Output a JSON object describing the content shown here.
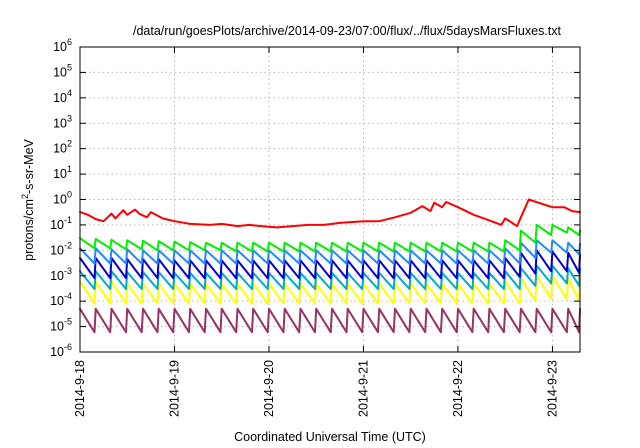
{
  "chart_data": {
    "type": "line",
    "title": "/data/run/goesPlots/archive/2014-09-23/07:00/flux/../flux/5daysMarsFluxes.txt",
    "xlabel": "Coordinated Universal Time (UTC)",
    "ylabel": "protons/cm²-s-sr-MeV",
    "y_scale": "log",
    "ylim": [
      1e-06,
      1000000.0
    ],
    "xlim": [
      "2014-09-18T00:00",
      "2014-09-23T07:00"
    ],
    "y_tick_labels": [
      {
        "value": 1e-06,
        "base": "10",
        "exp": "-6"
      },
      {
        "value": 1e-05,
        "base": "10",
        "exp": "-5"
      },
      {
        "value": 0.0001,
        "base": "10",
        "exp": "-4"
      },
      {
        "value": 0.001,
        "base": "10",
        "exp": "-3"
      },
      {
        "value": 0.01,
        "base": "10",
        "exp": "-2"
      },
      {
        "value": 0.1,
        "base": "10",
        "exp": "-1"
      },
      {
        "value": 1,
        "base": "10",
        "exp": "0"
      },
      {
        "value": 10,
        "base": "10",
        "exp": "1"
      },
      {
        "value": 100,
        "base": "10",
        "exp": "2"
      },
      {
        "value": 1000,
        "base": "10",
        "exp": "3"
      },
      {
        "value": 10000,
        "base": "10",
        "exp": "4"
      },
      {
        "value": 100000,
        "base": "10",
        "exp": "5"
      },
      {
        "value": 1000000,
        "base": "10",
        "exp": "6"
      }
    ],
    "x_tick_labels": [
      {
        "value": "2014-09-18T00:00",
        "label": "2014-9-18"
      },
      {
        "value": "2014-09-19T00:00",
        "label": "2014-9-19"
      },
      {
        "value": "2014-09-20T00:00",
        "label": "2014-9-20"
      },
      {
        "value": "2014-09-21T00:00",
        "label": "2014-9-21"
      },
      {
        "value": "2014-09-22T00:00",
        "label": "2014-9-22"
      },
      {
        "value": "2014-09-23T00:00",
        "label": "2014-9-23"
      }
    ],
    "grid": true,
    "legend": "none",
    "series": [
      {
        "color": "#ff0000",
        "sawtooth": false,
        "x": [
          "2014-09-18T00:00",
          "2014-09-18T02:00",
          "2014-09-18T04:00",
          "2014-09-18T06:00",
          "2014-09-18T08:00",
          "2014-09-18T09:00",
          "2014-09-18T11:00",
          "2014-09-18T12:00",
          "2014-09-18T14:00",
          "2014-09-18T15:00",
          "2014-09-18T17:00",
          "2014-09-18T18:00",
          "2014-09-18T20:00",
          "2014-09-18T21:00",
          "2014-09-19T00:00",
          "2014-09-19T04:00",
          "2014-09-19T09:00",
          "2014-09-19T12:00",
          "2014-09-19T16:00",
          "2014-09-19T19:00",
          "2014-09-19T22:00",
          "2014-09-20T02:00",
          "2014-09-20T06:00",
          "2014-09-20T10:00",
          "2014-09-20T14:00",
          "2014-09-20T18:00",
          "2014-09-21T00:00",
          "2014-09-21T04:00",
          "2014-09-21T08:00",
          "2014-09-21T12:00",
          "2014-09-21T15:00",
          "2014-09-21T17:00",
          "2014-09-21T18:00",
          "2014-09-21T20:00",
          "2014-09-21T21:00",
          "2014-09-22T00:00",
          "2014-09-22T04:00",
          "2014-09-22T08:00",
          "2014-09-22T11:00",
          "2014-09-22T12:00",
          "2014-09-22T15:00",
          "2014-09-22T16:00",
          "2014-09-22T18:00",
          "2014-09-22T21:00",
          "2014-09-23T00:00",
          "2014-09-23T03:00",
          "2014-09-23T05:00",
          "2014-09-23T07:00"
        ],
        "y": [
          0.32,
          0.25,
          0.17,
          0.14,
          0.28,
          0.18,
          0.38,
          0.25,
          0.4,
          0.28,
          0.2,
          0.32,
          0.22,
          0.18,
          0.14,
          0.11,
          0.1,
          0.11,
          0.09,
          0.1,
          0.09,
          0.08,
          0.09,
          0.1,
          0.1,
          0.12,
          0.14,
          0.14,
          0.2,
          0.3,
          0.55,
          0.35,
          0.75,
          0.5,
          0.8,
          0.5,
          0.25,
          0.15,
          0.1,
          0.18,
          0.09,
          0.2,
          1.0,
          0.7,
          0.5,
          0.5,
          0.35,
          0.32
        ]
      },
      {
        "color": "#00ee00",
        "sawtooth": true,
        "x": [
          "2014-09-18T00:00",
          "2014-09-18T04:00",
          "2014-09-18T08:00",
          "2014-09-18T12:00",
          "2014-09-18T16:00",
          "2014-09-18T20:00",
          "2014-09-19T00:00",
          "2014-09-19T04:00",
          "2014-09-19T08:00",
          "2014-09-19T12:00",
          "2014-09-19T16:00",
          "2014-09-19T20:00",
          "2014-09-20T00:00",
          "2014-09-20T04:00",
          "2014-09-20T08:00",
          "2014-09-20T12:00",
          "2014-09-20T16:00",
          "2014-09-20T20:00",
          "2014-09-21T00:00",
          "2014-09-21T04:00",
          "2014-09-21T08:00",
          "2014-09-21T12:00",
          "2014-09-21T16:00",
          "2014-09-21T20:00",
          "2014-09-22T00:00",
          "2014-09-22T04:00",
          "2014-09-22T08:00",
          "2014-09-22T12:00",
          "2014-09-22T16:00",
          "2014-09-22T20:00",
          "2014-09-23T00:00",
          "2014-09-23T04:00",
          "2014-09-23T07:00"
        ],
        "y_low": [
          0.012,
          0.012,
          0.011,
          0.011,
          0.01,
          0.01,
          0.01,
          0.01,
          0.01,
          0.009,
          0.009,
          0.009,
          0.009,
          0.009,
          0.009,
          0.009,
          0.009,
          0.009,
          0.009,
          0.009,
          0.009,
          0.009,
          0.009,
          0.009,
          0.009,
          0.009,
          0.009,
          0.01,
          0.02,
          0.04,
          0.05,
          0.04,
          0.03
        ],
        "y_high": [
          0.03,
          0.028,
          0.026,
          0.025,
          0.024,
          0.023,
          0.022,
          0.021,
          0.02,
          0.02,
          0.02,
          0.02,
          0.02,
          0.02,
          0.02,
          0.02,
          0.02,
          0.02,
          0.02,
          0.02,
          0.02,
          0.02,
          0.02,
          0.02,
          0.02,
          0.02,
          0.02,
          0.025,
          0.06,
          0.1,
          0.1,
          0.08,
          0.06
        ]
      },
      {
        "color": "#2288ff",
        "sawtooth": true,
        "x": [
          "2014-09-18T00:00",
          "2014-09-18T04:00",
          "2014-09-18T08:00",
          "2014-09-18T12:00",
          "2014-09-18T16:00",
          "2014-09-18T20:00",
          "2014-09-19T00:00",
          "2014-09-19T04:00",
          "2014-09-19T08:00",
          "2014-09-19T12:00",
          "2014-09-19T16:00",
          "2014-09-19T20:00",
          "2014-09-20T00:00",
          "2014-09-20T04:00",
          "2014-09-20T08:00",
          "2014-09-20T12:00",
          "2014-09-20T16:00",
          "2014-09-20T20:00",
          "2014-09-21T00:00",
          "2014-09-21T04:00",
          "2014-09-21T08:00",
          "2014-09-21T12:00",
          "2014-09-21T16:00",
          "2014-09-21T20:00",
          "2014-09-22T00:00",
          "2014-09-22T04:00",
          "2014-09-22T08:00",
          "2014-09-22T12:00",
          "2014-09-22T16:00",
          "2014-09-22T20:00",
          "2014-09-23T00:00",
          "2014-09-23T04:00",
          "2014-09-23T07:00"
        ],
        "y_low": [
          0.003,
          0.003,
          0.003,
          0.003,
          0.003,
          0.003,
          0.003,
          0.003,
          0.003,
          0.003,
          0.003,
          0.003,
          0.003,
          0.003,
          0.003,
          0.003,
          0.003,
          0.003,
          0.003,
          0.003,
          0.003,
          0.003,
          0.003,
          0.003,
          0.003,
          0.003,
          0.003,
          0.003,
          0.005,
          0.008,
          0.008,
          0.007,
          0.006
        ],
        "y_high": [
          0.012,
          0.012,
          0.011,
          0.011,
          0.01,
          0.01,
          0.01,
          0.01,
          0.01,
          0.01,
          0.01,
          0.01,
          0.01,
          0.01,
          0.01,
          0.01,
          0.01,
          0.01,
          0.01,
          0.01,
          0.01,
          0.01,
          0.01,
          0.01,
          0.01,
          0.01,
          0.01,
          0.012,
          0.02,
          0.025,
          0.025,
          0.02,
          0.018
        ]
      },
      {
        "color": "#0000cc",
        "sawtooth": true,
        "x": [
          "2014-09-18T00:00",
          "2014-09-18T04:00",
          "2014-09-18T08:00",
          "2014-09-18T12:00",
          "2014-09-18T16:00",
          "2014-09-18T20:00",
          "2014-09-19T00:00",
          "2014-09-19T04:00",
          "2014-09-19T08:00",
          "2014-09-19T12:00",
          "2014-09-19T16:00",
          "2014-09-19T20:00",
          "2014-09-20T00:00",
          "2014-09-20T04:00",
          "2014-09-20T08:00",
          "2014-09-20T12:00",
          "2014-09-20T16:00",
          "2014-09-20T20:00",
          "2014-09-21T00:00",
          "2014-09-21T04:00",
          "2014-09-21T08:00",
          "2014-09-21T12:00",
          "2014-09-21T16:00",
          "2014-09-21T20:00",
          "2014-09-22T00:00",
          "2014-09-22T04:00",
          "2014-09-22T08:00",
          "2014-09-22T12:00",
          "2014-09-22T16:00",
          "2014-09-22T20:00",
          "2014-09-23T00:00",
          "2014-09-23T04:00",
          "2014-09-23T07:00"
        ],
        "y_low": [
          0.0008,
          0.0008,
          0.0008,
          0.0008,
          0.0008,
          0.0008,
          0.0008,
          0.0008,
          0.0008,
          0.0008,
          0.0008,
          0.0008,
          0.0008,
          0.0008,
          0.0008,
          0.0008,
          0.0008,
          0.0008,
          0.0008,
          0.0008,
          0.0008,
          0.0008,
          0.0008,
          0.0008,
          0.0008,
          0.0008,
          0.0008,
          0.0009,
          0.0012,
          0.0015,
          0.0015,
          0.0013,
          0.0012
        ],
        "y_high": [
          0.005,
          0.005,
          0.005,
          0.0045,
          0.0045,
          0.0045,
          0.004,
          0.004,
          0.004,
          0.004,
          0.004,
          0.004,
          0.004,
          0.004,
          0.004,
          0.004,
          0.004,
          0.004,
          0.004,
          0.004,
          0.004,
          0.004,
          0.004,
          0.004,
          0.004,
          0.004,
          0.004,
          0.005,
          0.008,
          0.01,
          0.009,
          0.008,
          0.007
        ]
      },
      {
        "color": "#00aacc",
        "sawtooth": true,
        "x": [
          "2014-09-18T00:00",
          "2014-09-18T04:00",
          "2014-09-18T08:00",
          "2014-09-18T12:00",
          "2014-09-18T16:00",
          "2014-09-18T20:00",
          "2014-09-19T00:00",
          "2014-09-19T04:00",
          "2014-09-19T08:00",
          "2014-09-19T12:00",
          "2014-09-19T16:00",
          "2014-09-19T20:00",
          "2014-09-20T00:00",
          "2014-09-20T04:00",
          "2014-09-20T08:00",
          "2014-09-20T12:00",
          "2014-09-20T16:00",
          "2014-09-20T20:00",
          "2014-09-21T00:00",
          "2014-09-21T04:00",
          "2014-09-21T08:00",
          "2014-09-21T12:00",
          "2014-09-21T16:00",
          "2014-09-21T20:00",
          "2014-09-22T00:00",
          "2014-09-22T04:00",
          "2014-09-22T08:00",
          "2014-09-22T12:00",
          "2014-09-22T16:00",
          "2014-09-22T20:00",
          "2014-09-23T00:00",
          "2014-09-23T04:00",
          "2014-09-23T07:00"
        ],
        "y_low": [
          0.0003,
          0.0003,
          0.0003,
          0.0003,
          0.0003,
          0.0003,
          0.0003,
          0.0003,
          0.0003,
          0.0003,
          0.0003,
          0.0003,
          0.0003,
          0.0003,
          0.0003,
          0.0003,
          0.0003,
          0.0003,
          0.0003,
          0.0003,
          0.0003,
          0.0003,
          0.0003,
          0.0003,
          0.0003,
          0.0003,
          0.0003,
          0.0003,
          0.0004,
          0.0005,
          0.0005,
          0.0004,
          0.0004
        ],
        "y_high": [
          0.0015,
          0.0015,
          0.0015,
          0.0014,
          0.0014,
          0.0014,
          0.0013,
          0.0013,
          0.0013,
          0.0013,
          0.0013,
          0.0013,
          0.0013,
          0.0013,
          0.0013,
          0.0013,
          0.0013,
          0.0013,
          0.0013,
          0.0013,
          0.0013,
          0.0013,
          0.0013,
          0.0013,
          0.0013,
          0.0013,
          0.0013,
          0.0015,
          0.002,
          0.0025,
          0.0025,
          0.002,
          0.002
        ]
      },
      {
        "color": "#ffff00",
        "sawtooth": true,
        "x": [
          "2014-09-18T00:00",
          "2014-09-18T04:00",
          "2014-09-18T08:00",
          "2014-09-18T12:00",
          "2014-09-18T16:00",
          "2014-09-18T20:00",
          "2014-09-19T00:00",
          "2014-09-19T04:00",
          "2014-09-19T08:00",
          "2014-09-19T12:00",
          "2014-09-19T16:00",
          "2014-09-19T20:00",
          "2014-09-20T00:00",
          "2014-09-20T04:00",
          "2014-09-20T08:00",
          "2014-09-20T12:00",
          "2014-09-20T16:00",
          "2014-09-20T20:00",
          "2014-09-21T00:00",
          "2014-09-21T04:00",
          "2014-09-21T08:00",
          "2014-09-21T12:00",
          "2014-09-21T16:00",
          "2014-09-21T20:00",
          "2014-09-22T00:00",
          "2014-09-22T04:00",
          "2014-09-22T08:00",
          "2014-09-22T12:00",
          "2014-09-22T16:00",
          "2014-09-22T20:00",
          "2014-09-23T00:00",
          "2014-09-23T04:00",
          "2014-09-23T07:00"
        ],
        "y_low": [
          8e-05,
          8e-05,
          8e-05,
          8e-05,
          8e-05,
          8e-05,
          8e-05,
          8e-05,
          8e-05,
          8e-05,
          8e-05,
          8e-05,
          8e-05,
          8e-05,
          8e-05,
          8e-05,
          8e-05,
          8e-05,
          8e-05,
          8e-05,
          8e-05,
          8e-05,
          8e-05,
          8e-05,
          8e-05,
          8e-05,
          8e-05,
          8e-05,
          0.0001,
          0.00012,
          0.00012,
          0.0001,
          0.0001
        ],
        "y_high": [
          0.0006,
          0.0006,
          0.0006,
          0.0005,
          0.0005,
          0.0005,
          0.0005,
          0.0005,
          0.0005,
          0.0005,
          0.0005,
          0.0005,
          0.0005,
          0.0005,
          0.0005,
          0.0005,
          0.0005,
          0.0005,
          0.0005,
          0.0005,
          0.0005,
          0.0005,
          0.0005,
          0.0005,
          0.0005,
          0.0005,
          0.0005,
          0.0006,
          0.0008,
          0.001,
          0.001,
          0.0008,
          0.0008
        ]
      },
      {
        "color": "#993366",
        "sawtooth": true,
        "x": [
          "2014-09-18T00:00",
          "2014-09-18T04:00",
          "2014-09-18T08:00",
          "2014-09-18T12:00",
          "2014-09-18T16:00",
          "2014-09-18T20:00",
          "2014-09-19T00:00",
          "2014-09-19T04:00",
          "2014-09-19T08:00",
          "2014-09-19T12:00",
          "2014-09-19T16:00",
          "2014-09-19T20:00",
          "2014-09-20T00:00",
          "2014-09-20T04:00",
          "2014-09-20T08:00",
          "2014-09-20T12:00",
          "2014-09-20T16:00",
          "2014-09-20T20:00",
          "2014-09-21T00:00",
          "2014-09-21T04:00",
          "2014-09-21T08:00",
          "2014-09-21T12:00",
          "2014-09-21T16:00",
          "2014-09-21T20:00",
          "2014-09-22T00:00",
          "2014-09-22T04:00",
          "2014-09-22T08:00",
          "2014-09-22T12:00",
          "2014-09-22T16:00",
          "2014-09-22T20:00",
          "2014-09-23T00:00",
          "2014-09-23T04:00",
          "2014-09-23T07:00"
        ],
        "y_low": [
          6e-06,
          6e-06,
          6e-06,
          6e-06,
          6e-06,
          6e-06,
          6e-06,
          6e-06,
          6e-06,
          6e-06,
          6e-06,
          6e-06,
          6e-06,
          6e-06,
          6e-06,
          6e-06,
          6e-06,
          6e-06,
          6e-06,
          6e-06,
          6e-06,
          6e-06,
          6e-06,
          6e-06,
          6e-06,
          6e-06,
          6e-06,
          6e-06,
          6e-06,
          6e-06,
          6e-06,
          6e-06,
          6e-06
        ],
        "y_high": [
          5e-05,
          5e-05,
          5e-05,
          5e-05,
          5e-05,
          5e-05,
          5e-05,
          5e-05,
          5e-05,
          5e-05,
          5e-05,
          5e-05,
          5e-05,
          5e-05,
          5e-05,
          5e-05,
          5e-05,
          5e-05,
          5e-05,
          5e-05,
          5e-05,
          5e-05,
          5e-05,
          5e-05,
          5e-05,
          5e-05,
          5e-05,
          5e-05,
          5e-05,
          5e-05,
          5e-05,
          5e-05,
          5e-05
        ]
      }
    ]
  }
}
